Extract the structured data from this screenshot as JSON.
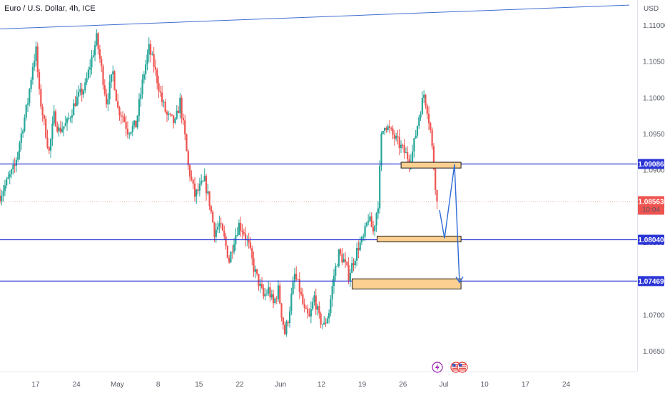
{
  "header": {
    "title": "Euro / U.S. Dollar, 4h, ICE",
    "currency": "USD"
  },
  "colors": {
    "up": "#26a69a",
    "down": "#ef5350",
    "level_line": "#2b35d6",
    "trend_line": "#3f6fd1",
    "zone_fill": "#fcd090",
    "zone_border": "#1a1a1a",
    "arrow": "#2f6bd6",
    "price_tag": "#ef5350"
  },
  "price_tag": {
    "price": "1.08563",
    "countdown": "10:04"
  },
  "levels": [
    {
      "name": "level-resistance",
      "value": 1.09086,
      "label": "1.09086"
    },
    {
      "name": "level-mid",
      "value": 1.0804,
      "label": "1.08040"
    },
    {
      "name": "level-target",
      "value": 1.07469,
      "label": "1.07469"
    }
  ],
  "events": [
    {
      "icon": "lightning-icon"
    },
    {
      "icon": "us-flag-icon"
    },
    {
      "icon": "us-flag-icon"
    }
  ],
  "chart_data": {
    "type": "candlestick",
    "title": "Euro / U.S. Dollar, 4h, ICE",
    "ylabel": "USD",
    "ylim": [
      1.0622,
      1.1135
    ],
    "y_ticks": [
      "1.11000",
      "1.10500",
      "1.10000",
      "1.09500",
      "1.09000",
      "1.08500",
      "1.08000",
      "1.07500",
      "1.07000",
      "1.06500"
    ],
    "x_ticks": [
      "17",
      "24",
      "May",
      "8",
      "15",
      "22",
      "Jun",
      "12",
      "19",
      "26",
      "Jul",
      "10",
      "17",
      "24"
    ],
    "anchors": [
      {
        "t": 0,
        "v": 1.0865
      },
      {
        "t": 3,
        "v": 1.0905
      },
      {
        "t": 5.5,
        "v": 1.0995
      },
      {
        "t": 6.4,
        "v": 1.1045
      },
      {
        "t": 7.2,
        "v": 1.1065
      },
      {
        "t": 8,
        "v": 1.1005
      },
      {
        "t": 9,
        "v": 1.0965
      },
      {
        "t": 10,
        "v": 1.0925
      },
      {
        "t": 11,
        "v": 1.0975
      },
      {
        "t": 12,
        "v": 1.0955
      },
      {
        "t": 13.5,
        "v": 1.0965
      },
      {
        "t": 15,
        "v": 1.0995
      },
      {
        "t": 17,
        "v": 1.1015
      },
      {
        "t": 18,
        "v": 1.1045
      },
      {
        "t": 19.3,
        "v": 1.1082
      },
      {
        "t": 20.5,
        "v": 1.1025
      },
      {
        "t": 21.3,
        "v": 1.0995
      },
      {
        "t": 22.5,
        "v": 1.1035
      },
      {
        "t": 23.5,
        "v": 1.0985
      },
      {
        "t": 24.5,
        "v": 1.0975
      },
      {
        "t": 25.5,
        "v": 1.0955
      },
      {
        "t": 27,
        "v": 1.0962
      },
      {
        "t": 28.5,
        "v": 1.1035
      },
      {
        "t": 29.5,
        "v": 1.1068
      },
      {
        "t": 30.5,
        "v": 1.1045
      },
      {
        "t": 32,
        "v": 1.0995
      },
      {
        "t": 33,
        "v": 1.0975
      },
      {
        "t": 34.5,
        "v": 1.0965
      },
      {
        "t": 35.5,
        "v": 1.0995
      },
      {
        "t": 36.5,
        "v": 1.0945
      },
      {
        "t": 37.3,
        "v": 1.0905
      },
      {
        "t": 38.5,
        "v": 1.0865
      },
      {
        "t": 39.5,
        "v": 1.0875
      },
      {
        "t": 40.5,
        "v": 1.0885
      },
      {
        "t": 41.5,
        "v": 1.0855
      },
      {
        "t": 42.5,
        "v": 1.0815
      },
      {
        "t": 43.5,
        "v": 1.0825
      },
      {
        "t": 44.5,
        "v": 1.0805
      },
      {
        "t": 45.5,
        "v": 1.0775
      },
      {
        "t": 46.5,
        "v": 1.0805
      },
      {
        "t": 47.5,
        "v": 1.0825
      },
      {
        "t": 48.5,
        "v": 1.0815
      },
      {
        "t": 49.5,
        "v": 1.0795
      },
      {
        "t": 50.5,
        "v": 1.0765
      },
      {
        "t": 51.5,
        "v": 1.0745
      },
      {
        "t": 52.5,
        "v": 1.0725
      },
      {
        "t": 53.5,
        "v": 1.0735
      },
      {
        "t": 54.5,
        "v": 1.0715
      },
      {
        "t": 55.5,
        "v": 1.0735
      },
      {
        "t": 56.3,
        "v": 1.0702
      },
      {
        "t": 57,
        "v": 1.0675
      },
      {
        "t": 57.8,
        "v": 1.0695
      },
      {
        "t": 58.5,
        "v": 1.0725
      },
      {
        "t": 59,
        "v": 1.0755
      },
      {
        "t": 60,
        "v": 1.0735
      },
      {
        "t": 61,
        "v": 1.0705
      },
      {
        "t": 62,
        "v": 1.0695
      },
      {
        "t": 63,
        "v": 1.0725
      },
      {
        "t": 64,
        "v": 1.0695
      },
      {
        "t": 65,
        "v": 1.0685
      },
      {
        "t": 66,
        "v": 1.0705
      },
      {
        "t": 67,
        "v": 1.0755
      },
      {
        "t": 68,
        "v": 1.0785
      },
      {
        "t": 69,
        "v": 1.0775
      },
      {
        "t": 70,
        "v": 1.0755
      },
      {
        "t": 71,
        "v": 1.0775
      },
      {
        "t": 72,
        "v": 1.0795
      },
      {
        "t": 73,
        "v": 1.0805
      },
      {
        "t": 74,
        "v": 1.0835
      },
      {
        "t": 75,
        "v": 1.0815
      },
      {
        "t": 76,
        "v": 1.0855
      },
      {
        "t": 76.8,
        "v": 1.0945
      },
      {
        "t": 77.5,
        "v": 1.0965
      },
      {
        "t": 78.5,
        "v": 1.0955
      },
      {
        "t": 79.5,
        "v": 1.0945
      },
      {
        "t": 80.5,
        "v": 1.0935
      },
      {
        "t": 81.5,
        "v": 1.0925
      },
      {
        "t": 82.5,
        "v": 1.0915
      },
      {
        "t": 83.3,
        "v": 1.0925
      },
      {
        "t": 84.5,
        "v": 1.0975
      },
      {
        "t": 85.5,
        "v": 1.1005
      },
      {
        "t": 86,
        "v": 1.0985
      },
      {
        "t": 86.5,
        "v": 1.0955
      },
      {
        "t": 87,
        "v": 1.0905
      },
      {
        "t": 87.5,
        "v": 1.0856
      }
    ],
    "projection": [
      {
        "t": 88,
        "v": 1.0845
      },
      {
        "t": 89,
        "v": 1.0806
      },
      {
        "t": 91,
        "v": 1.0908
      },
      {
        "t": 92,
        "v": 1.0745
      }
    ],
    "zones": [
      {
        "t_start": 80.3,
        "t_end": 92.3,
        "v_low": 1.0903,
        "v_high": 1.0911
      },
      {
        "t_start": 75.5,
        "t_end": 92.3,
        "v_low": 1.0801,
        "v_high": 1.0809
      },
      {
        "t_start": 70.5,
        "t_end": 92.3,
        "v_low": 1.0736,
        "v_high": 1.075
      }
    ],
    "trendline": {
      "t1": 0,
      "v1": 1.1095,
      "t2": 126,
      "v2": 1.1128
    },
    "current_price": 1.08563
  }
}
